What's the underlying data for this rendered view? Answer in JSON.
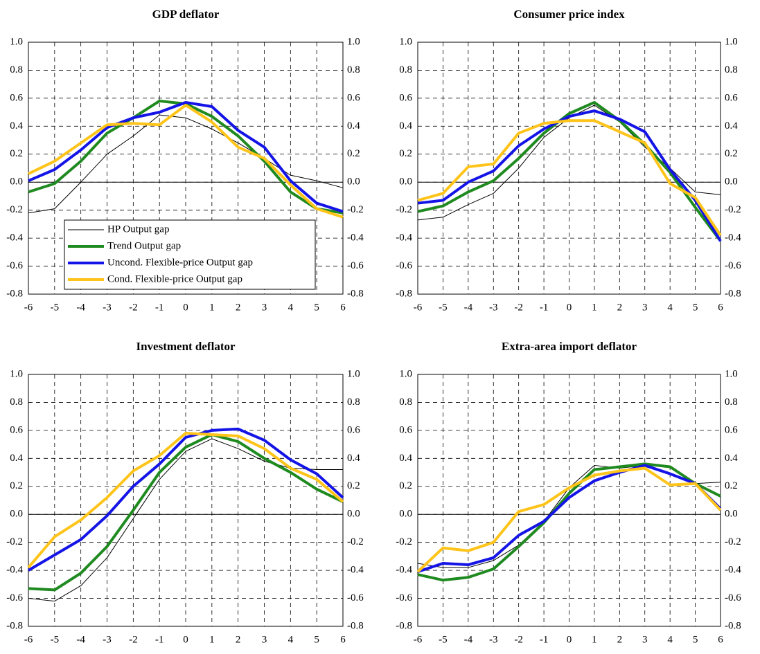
{
  "chart_data": [
    {
      "type": "line",
      "title": "GDP deflator",
      "x": [
        -6,
        -5,
        -4,
        -3,
        -2,
        -1,
        0,
        1,
        2,
        3,
        4,
        5,
        6
      ],
      "xlim": [
        -6,
        6
      ],
      "xticks": [
        -6,
        -5,
        -4,
        -3,
        -2,
        -1,
        0,
        1,
        2,
        3,
        4,
        5,
        6
      ],
      "ylim": [
        -0.8,
        1
      ],
      "yticks": [
        -0.8,
        -0.6,
        -0.4,
        -0.2,
        {
          "value": 0,
          "label": "0.0"
        },
        0.2,
        0.4,
        0.6,
        0.8,
        {
          "value": 1,
          "label": "1.0"
        }
      ],
      "grid": true,
      "legend": "lower left",
      "series": [
        {
          "name": "HP Output gap",
          "color": "#000000",
          "values": [
            -0.22,
            -0.19,
            0.0,
            0.2,
            0.33,
            0.48,
            0.46,
            0.38,
            0.28,
            0.17,
            0.05,
            0.01,
            -0.04
          ]
        },
        {
          "name": "Trend Output gap",
          "color": "#1f8a1f",
          "values": [
            -0.07,
            -0.01,
            0.15,
            0.35,
            0.46,
            0.58,
            0.56,
            0.47,
            0.33,
            0.15,
            -0.07,
            -0.19,
            -0.22
          ]
        },
        {
          "name": "Uncond. Flexible-price Output gap",
          "color": "#1414e6",
          "values": [
            0.01,
            0.09,
            0.23,
            0.39,
            0.46,
            0.5,
            0.57,
            0.54,
            0.37,
            0.25,
            0.01,
            -0.15,
            -0.21
          ]
        },
        {
          "name": "Cond. Flexible-price Output gap",
          "color": "#ffc41a",
          "values": [
            0.06,
            0.15,
            0.28,
            0.41,
            0.42,
            0.41,
            0.55,
            0.43,
            0.25,
            0.17,
            -0.02,
            -0.19,
            -0.25
          ]
        }
      ]
    },
    {
      "type": "line",
      "title": "Consumer price index",
      "x": [
        -6,
        -5,
        -4,
        -3,
        -2,
        -1,
        0,
        1,
        2,
        3,
        4,
        5,
        6
      ],
      "xlim": [
        -6,
        6
      ],
      "xticks": [
        -6,
        -5,
        -4,
        -3,
        -2,
        -1,
        0,
        1,
        2,
        3,
        4,
        5,
        6
      ],
      "ylim": [
        -0.8,
        1
      ],
      "yticks": [
        -0.8,
        -0.6,
        -0.4,
        -0.2,
        {
          "value": 0,
          "label": "0.0"
        },
        0.2,
        0.4,
        0.6,
        0.8,
        {
          "value": 1,
          "label": "1.0"
        }
      ],
      "grid": true,
      "series": [
        {
          "color": "#000000",
          "values": [
            -0.27,
            -0.25,
            -0.16,
            -0.08,
            0.1,
            0.32,
            0.46,
            0.55,
            0.43,
            0.25,
            0.1,
            -0.07,
            -0.09
          ]
        },
        {
          "color": "#1f8a1f",
          "values": [
            -0.21,
            -0.17,
            -0.07,
            0.01,
            0.17,
            0.35,
            0.49,
            0.57,
            0.44,
            0.27,
            0.07,
            -0.18,
            -0.42
          ]
        },
        {
          "color": "#1414e6",
          "values": [
            -0.15,
            -0.13,
            0.0,
            0.08,
            0.26,
            0.38,
            0.47,
            0.51,
            0.45,
            0.36,
            0.09,
            -0.13,
            -0.42
          ]
        },
        {
          "color": "#ffc41a",
          "values": [
            -0.13,
            -0.08,
            0.11,
            0.13,
            0.35,
            0.42,
            0.44,
            0.44,
            0.36,
            0.28,
            -0.01,
            -0.11,
            -0.38
          ]
        }
      ]
    },
    {
      "type": "line",
      "title": "Investment deflator",
      "x": [
        -6,
        -5,
        -4,
        -3,
        -2,
        -1,
        0,
        1,
        2,
        3,
        4,
        5,
        6
      ],
      "xlim": [
        -6,
        6
      ],
      "xticks": [
        -6,
        -5,
        -4,
        -3,
        -2,
        -1,
        0,
        1,
        2,
        3,
        4,
        5,
        6
      ],
      "ylim": [
        -0.8,
        1
      ],
      "yticks": [
        -0.8,
        -0.6,
        -0.4,
        -0.2,
        {
          "value": 0,
          "label": "0.0"
        },
        0.2,
        0.4,
        0.6,
        0.8,
        {
          "value": 1,
          "label": "1.0"
        }
      ],
      "grid": true,
      "series": [
        {
          "color": "#000000",
          "values": [
            -0.6,
            -0.62,
            -0.51,
            -0.31,
            -0.03,
            0.25,
            0.45,
            0.54,
            0.47,
            0.38,
            0.33,
            0.32,
            0.32
          ]
        },
        {
          "color": "#1f8a1f",
          "values": [
            -0.53,
            -0.54,
            -0.42,
            -0.23,
            0.03,
            0.3,
            0.48,
            0.57,
            0.52,
            0.4,
            0.3,
            0.18,
            0.09
          ]
        },
        {
          "color": "#1414e6",
          "values": [
            -0.4,
            -0.29,
            -0.18,
            -0.01,
            0.2,
            0.36,
            0.55,
            0.6,
            0.61,
            0.53,
            0.39,
            0.29,
            0.12
          ]
        },
        {
          "color": "#ffc41a",
          "values": [
            -0.38,
            -0.16,
            -0.04,
            0.12,
            0.31,
            0.42,
            0.58,
            0.57,
            0.56,
            0.47,
            0.33,
            0.25,
            0.09
          ]
        }
      ]
    },
    {
      "type": "line",
      "title": "Extra-area import deflator",
      "x": [
        -6,
        -5,
        -4,
        -3,
        -2,
        -1,
        0,
        1,
        2,
        3,
        4,
        5,
        6
      ],
      "xlim": [
        -6,
        6
      ],
      "xticks": [
        -6,
        -5,
        -4,
        -3,
        -2,
        -1,
        0,
        1,
        2,
        3,
        4,
        5,
        6
      ],
      "ylim": [
        -0.8,
        1
      ],
      "yticks": [
        -0.8,
        -0.6,
        -0.4,
        -0.2,
        {
          "value": 0,
          "label": "0.0"
        },
        0.2,
        0.4,
        0.6,
        0.8,
        {
          "value": 1,
          "label": "1.0"
        }
      ],
      "grid": true,
      "series": [
        {
          "color": "#000000",
          "values": [
            -0.35,
            -0.38,
            -0.38,
            -0.33,
            -0.22,
            -0.05,
            0.19,
            0.35,
            0.33,
            0.35,
            0.34,
            0.22,
            0.23
          ]
        },
        {
          "color": "#1f8a1f",
          "values": [
            -0.43,
            -0.47,
            -0.45,
            -0.39,
            -0.23,
            -0.06,
            0.15,
            0.32,
            0.34,
            0.36,
            0.34,
            0.22,
            0.13
          ]
        },
        {
          "color": "#1414e6",
          "values": [
            -0.41,
            -0.35,
            -0.36,
            -0.31,
            -0.15,
            -0.05,
            0.12,
            0.24,
            0.3,
            0.35,
            0.29,
            0.22,
            0.04
          ]
        },
        {
          "color": "#ffc41a",
          "values": [
            -0.41,
            -0.24,
            -0.26,
            -0.2,
            0.02,
            0.07,
            0.19,
            0.28,
            0.31,
            0.33,
            0.21,
            0.22,
            0.03
          ]
        }
      ]
    }
  ]
}
